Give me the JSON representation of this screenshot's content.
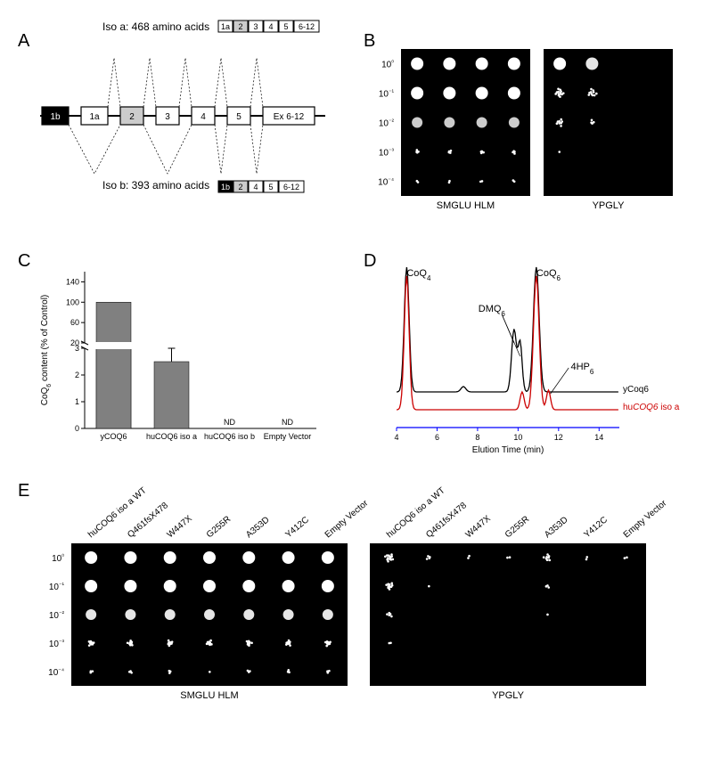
{
  "panelA": {
    "label": "A",
    "top_label": "Iso a: 468 amino acids",
    "top_boxes": [
      "1a",
      "2",
      "3",
      "4",
      "5",
      "6-12"
    ],
    "bottom_label": "Iso b: 393 amino acids",
    "bottom_boxes": [
      "1b",
      "2",
      "4",
      "5",
      "6-12"
    ],
    "exons": [
      "1b",
      "1a",
      "2",
      "3",
      "4",
      "5",
      "Ex 6-12"
    ],
    "exon_colors": {
      "1b": "#000000",
      "2": "#cccccc"
    }
  },
  "panelB": {
    "label": "B",
    "row_labels": [
      "10⁰",
      "10⁻¹",
      "10⁻²",
      "10⁻³",
      "10⁻⁴"
    ],
    "plate_labels": [
      "SMGLU HLM",
      "YPGLY"
    ],
    "left": {
      "cols": 4,
      "spot_sizes": [
        [
          14,
          14,
          14,
          14
        ],
        [
          14,
          14,
          14,
          14
        ],
        [
          12,
          12,
          12,
          12
        ],
        [
          6,
          6,
          6,
          6
        ],
        [
          4,
          4,
          4,
          4
        ]
      ],
      "spot_density": [
        [
          1,
          1,
          1,
          1
        ],
        [
          1,
          1,
          1,
          1
        ],
        [
          0.6,
          0.6,
          0.6,
          0.6
        ],
        [
          0.15,
          0.15,
          0.15,
          0.15
        ],
        [
          0.08,
          0.08,
          0.08,
          0.08
        ]
      ]
    },
    "right": {
      "cols": 4,
      "spot_sizes": [
        [
          14,
          14,
          0,
          0
        ],
        [
          12,
          12,
          0,
          0
        ],
        [
          10,
          8,
          0,
          0
        ],
        [
          4,
          0,
          0,
          0
        ],
        [
          0,
          0,
          0,
          0
        ]
      ],
      "spot_density": [
        [
          0.8,
          0.7,
          0,
          0
        ],
        [
          0.5,
          0.4,
          0,
          0
        ],
        [
          0.3,
          0.15,
          0,
          0
        ],
        [
          0.05,
          0,
          0,
          0
        ],
        [
          0,
          0,
          0,
          0
        ]
      ]
    }
  },
  "panelC": {
    "label": "C",
    "ylabel": "CoQ₆ content (% of Control)",
    "categories": [
      "yCOQ6",
      "huCOQ6 iso a",
      "huCOQ6 iso b",
      "Empty Vector"
    ],
    "values": [
      100,
      2.5,
      0,
      0
    ],
    "errors": [
      0,
      0.5,
      0,
      0
    ],
    "nd_flags": [
      false,
      false,
      true,
      true
    ],
    "nd_label": "ND",
    "bar_color": "#808080",
    "background_color": "#ffffff",
    "lower_ymax": 3,
    "lower_ytick_step": 1,
    "upper_ymin": 20,
    "upper_ymax": 160,
    "upper_ytick_step": 40,
    "label_fontsize": 10,
    "axis_fontsize": 9
  },
  "panelD": {
    "label": "D",
    "xlabel": "Elution Time (min)",
    "xlim": [
      4,
      15
    ],
    "xtick_step": 2,
    "peaks": [
      "CoQ₄",
      "DMQ₆",
      "CoQ₆",
      "4HP₆"
    ],
    "traces": {
      "yCoq6": {
        "color": "#000000",
        "label": "yCoq6"
      },
      "huCOQ6_iso_a": {
        "color": "#cc0000",
        "label": "huCOQ6 iso a",
        "style": "italic-partial"
      }
    },
    "label_fontsize": 10
  },
  "panelE": {
    "label": "E",
    "row_labels": [
      "10⁰",
      "10⁻¹",
      "10⁻²",
      "10⁻³",
      "10⁻⁴"
    ],
    "col_labels": [
      "huCOQ6 iso a WT",
      "Q461fsX478",
      "W447X",
      "G255R",
      "A353D",
      "Y412C",
      "Empty Vector"
    ],
    "plate_labels": [
      "SMGLU HLM",
      "YPGLY"
    ],
    "left": {
      "spot_sizes": [
        [
          14,
          14,
          14,
          14,
          14,
          14,
          14
        ],
        [
          14,
          14,
          14,
          14,
          14,
          14,
          14
        ],
        [
          12,
          12,
          12,
          12,
          12,
          12,
          12
        ],
        [
          8,
          8,
          8,
          8,
          8,
          8,
          8
        ],
        [
          5,
          5,
          5,
          4,
          5,
          5,
          5
        ]
      ],
      "spot_density": [
        [
          1,
          1,
          1,
          1,
          1,
          1,
          1
        ],
        [
          1,
          1,
          1,
          1,
          1,
          1,
          1
        ],
        [
          0.7,
          0.7,
          0.7,
          0.7,
          0.7,
          0.7,
          0.7
        ],
        [
          0.3,
          0.3,
          0.3,
          0.3,
          0.3,
          0.3,
          0.3
        ],
        [
          0.1,
          0.1,
          0.1,
          0.05,
          0.1,
          0.1,
          0.1
        ]
      ]
    },
    "right": {
      "spot_sizes": [
        [
          12,
          8,
          6,
          6,
          10,
          6,
          6
        ],
        [
          10,
          2,
          0,
          0,
          6,
          0,
          0
        ],
        [
          8,
          0,
          0,
          0,
          2,
          0,
          0
        ],
        [
          4,
          0,
          0,
          0,
          0,
          0,
          0
        ],
        [
          0,
          0,
          0,
          0,
          0,
          0,
          0
        ]
      ],
      "spot_density": [
        [
          0.5,
          0.15,
          0.08,
          0.08,
          0.3,
          0.08,
          0.08
        ],
        [
          0.4,
          0.03,
          0,
          0,
          0.1,
          0,
          0
        ],
        [
          0.2,
          0,
          0,
          0,
          0.02,
          0,
          0
        ],
        [
          0.08,
          0,
          0,
          0,
          0,
          0,
          0
        ],
        [
          0,
          0,
          0,
          0,
          0,
          0,
          0
        ]
      ]
    }
  }
}
